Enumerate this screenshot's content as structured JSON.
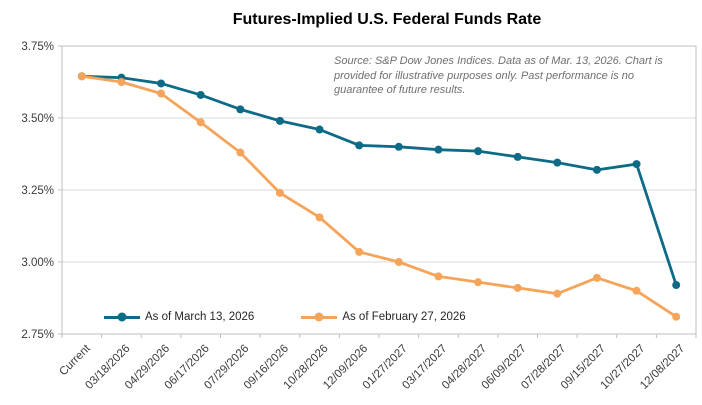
{
  "chart_data": {
    "type": "line",
    "title": "Futures-Implied U.S. Federal Funds Rate",
    "source_note": "Source: S&P Dow Jones Indices. Data as of Mar. 13, 2026.  Chart is\nprovided for illustrative purposes only. Past performance is no\nguarantee of future results.",
    "categories": [
      "Current",
      "03/18/2026",
      "04/29/2026",
      "06/17/2026",
      "07/29/2026",
      "09/16/2026",
      "10/28/2026",
      "12/09/2026",
      "01/27/2027",
      "03/17/2027",
      "04/28/2027",
      "06/09/2027",
      "07/28/2027",
      "09/15/2027",
      "10/27/2027",
      "12/08/2027"
    ],
    "series": [
      {
        "name": "As of March 13, 2026",
        "color": "#0E6B88",
        "values": [
          3.645,
          3.64,
          3.62,
          3.58,
          3.53,
          3.49,
          3.46,
          3.405,
          3.4,
          3.39,
          3.385,
          3.365,
          3.345,
          3.32,
          3.34,
          2.92
        ]
      },
      {
        "name": "As of February 27, 2026",
        "color": "#F5A45A",
        "values": [
          3.645,
          3.625,
          3.585,
          3.485,
          3.38,
          3.24,
          3.155,
          3.035,
          3.0,
          2.95,
          2.93,
          2.91,
          2.89,
          2.945,
          2.9,
          2.81
        ]
      }
    ],
    "xlabel": "",
    "ylabel": "",
    "ylim": [
      2.75,
      3.75
    ],
    "yticks": [
      {
        "value": 3.75,
        "label": "3.75%"
      },
      {
        "value": 3.5,
        "label": "3.50%"
      },
      {
        "value": 3.25,
        "label": "3.25%"
      },
      {
        "value": 3.0,
        "label": "3.00%"
      },
      {
        "value": 2.75,
        "label": "2.75%"
      }
    ],
    "grid": "horizontal",
    "legend_position": "bottom-inside",
    "colors": {
      "grid": "#D9D9D9",
      "plot_border": "#BFBFBF",
      "axis_text": "#3B3B3B",
      "source_text": "#6F6F6F",
      "title_text": "#000000",
      "background": "#FFFFFF"
    }
  }
}
